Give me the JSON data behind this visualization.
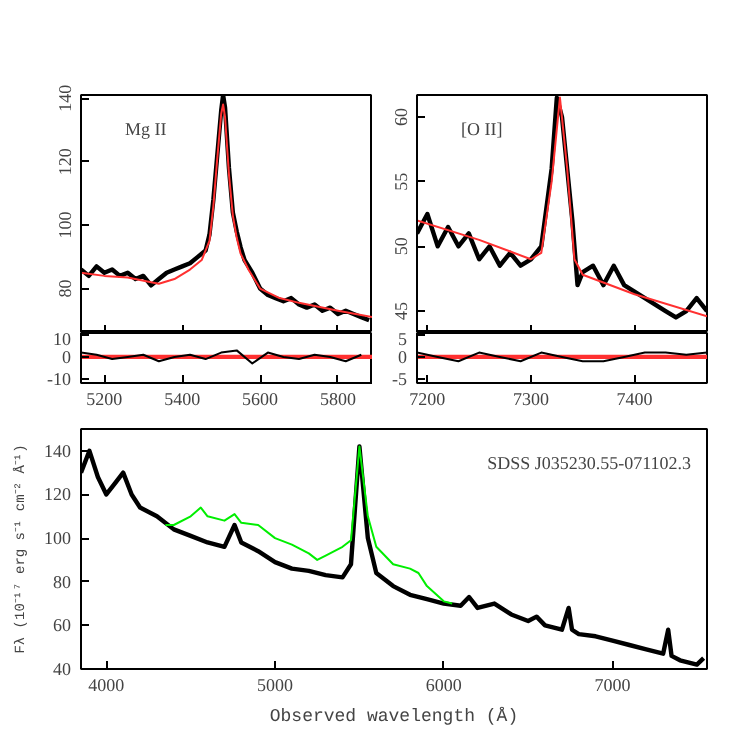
{
  "chart_data": [
    {
      "type": "line",
      "annotations": [
        "Mg II"
      ],
      "xlim": [
        5140,
        5890
      ],
      "ylim": [
        66,
        141
      ],
      "yticks": [
        80,
        100,
        120,
        140
      ],
      "xticks": [
        5200,
        5400,
        5600,
        5800
      ],
      "tick_labels": "y",
      "series": [
        {
          "color": "#000000",
          "x": [
            5140,
            5160,
            5180,
            5200,
            5220,
            5240,
            5260,
            5280,
            5300,
            5320,
            5340,
            5360,
            5380,
            5400,
            5420,
            5440,
            5460,
            5470,
            5480,
            5490,
            5500,
            5505,
            5510,
            5520,
            5530,
            5540,
            5550,
            5560,
            5580,
            5600,
            5620,
            5640,
            5660,
            5680,
            5700,
            5720,
            5740,
            5760,
            5780,
            5800,
            5820,
            5840,
            5860,
            5880
          ],
          "values": [
            86,
            84,
            87,
            85,
            86,
            84,
            85,
            83,
            84,
            81,
            83,
            85,
            86,
            87,
            88,
            90,
            92,
            97,
            108,
            122,
            136,
            141,
            137,
            118,
            104,
            98,
            93,
            89,
            85,
            80,
            78,
            77,
            76,
            77,
            75,
            74,
            75,
            73,
            74,
            72,
            73,
            72,
            71,
            70
          ]
        },
        {
          "color": "#ff3030",
          "x": [
            5140,
            5200,
            5260,
            5320,
            5340,
            5380,
            5420,
            5450,
            5470,
            5480,
            5490,
            5500,
            5505,
            5510,
            5520,
            5530,
            5540,
            5550,
            5570,
            5600,
            5650,
            5700,
            5800,
            5890
          ],
          "values": [
            85,
            84,
            83.5,
            82,
            81.5,
            83,
            86,
            89,
            95,
            106,
            121,
            135,
            138,
            134,
            116,
            103,
            96,
            91,
            86,
            80,
            77,
            75.5,
            73,
            71
          ]
        }
      ]
    },
    {
      "type": "line",
      "xlim": [
        5140,
        5890
      ],
      "ylim": [
        -12,
        11
      ],
      "yticks": [
        -10,
        0,
        10
      ],
      "xticks": [
        5200,
        5400,
        5600,
        5800
      ],
      "series": [
        {
          "color": "#ff3030",
          "x": [
            5140,
            5890
          ],
          "values": [
            0,
            0
          ]
        },
        {
          "color": "#000000",
          "x": [
            5140,
            5180,
            5220,
            5260,
            5300,
            5340,
            5380,
            5420,
            5460,
            5500,
            5540,
            5580,
            5620,
            5660,
            5700,
            5740,
            5780,
            5820,
            5860
          ],
          "values": [
            2,
            1,
            -1,
            0,
            1,
            -2,
            0,
            1,
            -1,
            2,
            3,
            -3,
            2,
            0,
            -1,
            1,
            0,
            -2,
            1
          ]
        }
      ]
    },
    {
      "type": "line",
      "annotations": [
        "[O II]"
      ],
      "xlim": [
        7190,
        7470
      ],
      "ylim": [
        43.3,
        61.7
      ],
      "yticks": [
        45,
        50,
        55,
        60
      ],
      "xticks": [
        7200,
        7300,
        7400
      ],
      "tick_labels": "y",
      "series": [
        {
          "color": "#000000",
          "x": [
            7190,
            7200,
            7210,
            7220,
            7230,
            7240,
            7250,
            7260,
            7270,
            7280,
            7290,
            7300,
            7310,
            7320,
            7325,
            7330,
            7340,
            7345,
            7350,
            7360,
            7370,
            7380,
            7390,
            7400,
            7410,
            7420,
            7430,
            7440,
            7450,
            7460,
            7470
          ],
          "values": [
            51,
            52.5,
            50,
            51.5,
            50,
            51,
            49,
            50,
            48.5,
            49.5,
            48.5,
            49,
            50,
            56,
            61.5,
            60,
            52,
            47,
            48,
            48.5,
            47,
            48.5,
            47,
            46.5,
            46,
            45.5,
            45,
            44.5,
            45,
            46,
            45
          ]
        },
        {
          "color": "#ff3030",
          "x": [
            7190,
            7250,
            7300,
            7310,
            7320,
            7328,
            7335,
            7342,
            7350,
            7400,
            7470
          ],
          "values": [
            52,
            50.5,
            49,
            49.5,
            55,
            61.5,
            56,
            49,
            47.8,
            46.3,
            44.6
          ]
        }
      ]
    },
    {
      "type": "line",
      "xlim": [
        7190,
        7470
      ],
      "ylim": [
        -6,
        5.5
      ],
      "yticks": [
        -5,
        0,
        5
      ],
      "xticks": [
        7200,
        7300,
        7400
      ],
      "series": [
        {
          "color": "#ff3030",
          "x": [
            7190,
            7470
          ],
          "values": [
            0,
            0
          ]
        },
        {
          "color": "#000000",
          "x": [
            7190,
            7210,
            7230,
            7250,
            7270,
            7290,
            7310,
            7330,
            7350,
            7370,
            7390,
            7410,
            7430,
            7450,
            7470
          ],
          "values": [
            1,
            0,
            -1,
            1,
            0,
            -1,
            1,
            0,
            -1,
            -1,
            0,
            1,
            1,
            0.5,
            1
          ]
        }
      ]
    },
    {
      "type": "line",
      "annotations": [
        "SDSS J035230.55-071102.3"
      ],
      "xlabel": "Observed wavelength (Å)",
      "ylabel": "Fλ (10⁻¹⁷ erg s⁻¹ cm⁻² Å⁻¹)",
      "xlim": [
        3850,
        7560
      ],
      "ylim": [
        40,
        150
      ],
      "xticks": [
        4000,
        5000,
        6000,
        7000
      ],
      "yticks": [
        40,
        60,
        80,
        100,
        120,
        140
      ],
      "series": [
        {
          "color": "#000000",
          "x": [
            3850,
            3900,
            3950,
            4000,
            4050,
            4100,
            4150,
            4200,
            4300,
            4400,
            4500,
            4600,
            4700,
            4760,
            4800,
            4900,
            5000,
            5100,
            5200,
            5300,
            5400,
            5450,
            5500,
            5550,
            5600,
            5700,
            5800,
            5900,
            6000,
            6100,
            6150,
            6200,
            6300,
            6400,
            6500,
            6550,
            6600,
            6700,
            6740,
            6760,
            6800,
            6900,
            7000,
            7100,
            7200,
            7300,
            7330,
            7350,
            7400,
            7500,
            7540
          ],
          "values": [
            130,
            140,
            128,
            120,
            125,
            130,
            120,
            114,
            110,
            104,
            101,
            98,
            96,
            106,
            98,
            94,
            89,
            86,
            85,
            83,
            82,
            88,
            142,
            100,
            84,
            78,
            74,
            72,
            70,
            69,
            73,
            68,
            70,
            65,
            62,
            64,
            60,
            58,
            68,
            58,
            56,
            55,
            53,
            51,
            49,
            47,
            58,
            46,
            44,
            42,
            45
          ]
        },
        {
          "color": "#00ee00",
          "x": [
            4350,
            4400,
            4500,
            4560,
            4600,
            4700,
            4760,
            4800,
            4900,
            5000,
            5100,
            5200,
            5250,
            5300,
            5400,
            5450,
            5500,
            5550,
            5600,
            5700,
            5800,
            5850,
            5900,
            6000,
            6050
          ],
          "values": [
            106,
            106,
            110,
            114,
            110,
            108,
            111,
            107,
            106,
            100,
            97,
            93,
            90,
            92,
            96,
            99,
            142,
            110,
            96,
            88,
            86,
            84,
            78,
            71,
            70
          ]
        }
      ]
    }
  ]
}
